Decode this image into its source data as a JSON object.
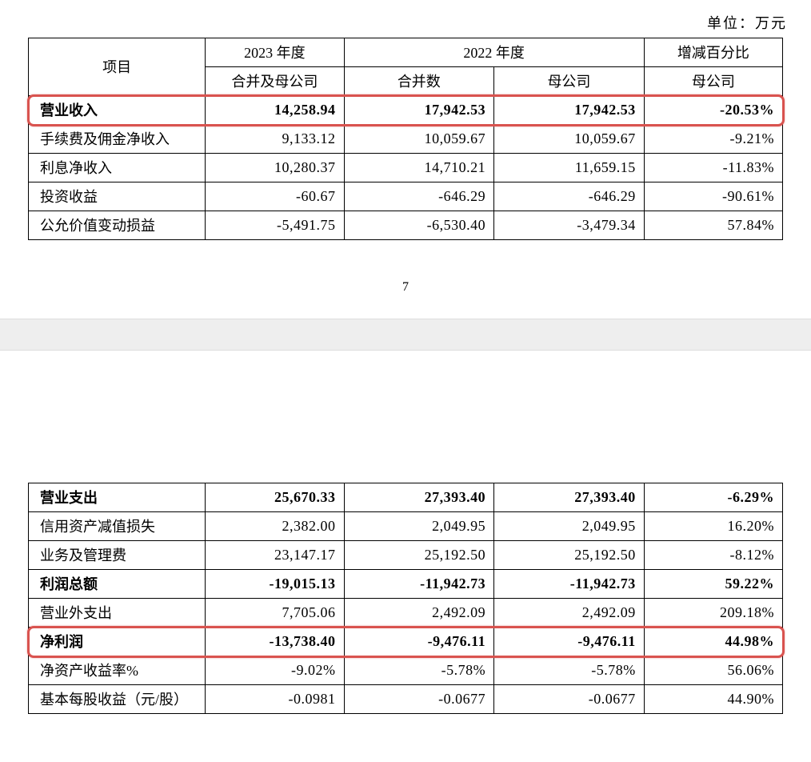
{
  "unit_label": "单位：万元",
  "page_number": "7",
  "table1": {
    "header": {
      "col_item": "项目",
      "col_2023": "2023 年度",
      "col_2022": "2022 年度",
      "col_pct": "增减百分比",
      "sub_merged_parent": "合并及母公司",
      "sub_consolidated": "合并数",
      "sub_parent": "母公司",
      "sub_parent_pct": "母公司"
    },
    "rows": [
      {
        "label": "营业收入",
        "bold": true,
        "highlight": true,
        "c1": "14,258.94",
        "c2": "17,942.53",
        "c3": "17,942.53",
        "c4": "-20.53%"
      },
      {
        "label": "手续费及佣金净收入",
        "bold": false,
        "highlight": false,
        "c1": "9,133.12",
        "c2": "10,059.67",
        "c3": "10,059.67",
        "c4": "-9.21%"
      },
      {
        "label": "利息净收入",
        "bold": false,
        "highlight": false,
        "c1": "10,280.37",
        "c2": "14,710.21",
        "c3": "11,659.15",
        "c4": "-11.83%"
      },
      {
        "label": "投资收益",
        "bold": false,
        "highlight": false,
        "c1": "-60.67",
        "c2": "-646.29",
        "c3": "-646.29",
        "c4": "-90.61%"
      },
      {
        "label": "公允价值变动损益",
        "bold": false,
        "highlight": false,
        "c1": "-5,491.75",
        "c2": "-6,530.40",
        "c3": "-3,479.34",
        "c4": "57.84%"
      }
    ]
  },
  "table2": {
    "rows": [
      {
        "label": "营业支出",
        "bold": true,
        "highlight": false,
        "c1": "25,670.33",
        "c2": "27,393.40",
        "c3": "27,393.40",
        "c4": "-6.29%"
      },
      {
        "label": "信用资产减值损失",
        "bold": false,
        "highlight": false,
        "c1": "2,382.00",
        "c2": "2,049.95",
        "c3": "2,049.95",
        "c4": "16.20%"
      },
      {
        "label": "业务及管理费",
        "bold": false,
        "highlight": false,
        "c1": "23,147.17",
        "c2": "25,192.50",
        "c3": "25,192.50",
        "c4": "-8.12%"
      },
      {
        "label": "利润总额",
        "bold": true,
        "highlight": false,
        "c1": "-19,015.13",
        "c2": "-11,942.73",
        "c3": "-11,942.73",
        "c4": "59.22%"
      },
      {
        "label": "营业外支出",
        "bold": false,
        "highlight": false,
        "c1": "7,705.06",
        "c2": "2,492.09",
        "c3": "2,492.09",
        "c4": "209.18%"
      },
      {
        "label": "净利润",
        "bold": true,
        "highlight": true,
        "c1": "-13,738.40",
        "c2": "-9,476.11",
        "c3": "-9,476.11",
        "c4": "44.98%"
      },
      {
        "label": "净资产收益率%",
        "bold": false,
        "highlight": false,
        "c1": "-9.02%",
        "c2": "-5.78%",
        "c3": "-5.78%",
        "c4": "56.06%"
      },
      {
        "label": "基本每股收益（元/股）",
        "bold": false,
        "highlight": false,
        "c1": "-0.0981",
        "c2": "-0.0677",
        "c3": "-0.0677",
        "c4": "44.90%"
      }
    ]
  },
  "styling": {
    "highlight_border_color": "#d9534f",
    "highlight_border_width": 3,
    "highlight_border_radius": 8,
    "table_border_color": "#000000",
    "table_border_width": 1.5,
    "background_color": "#ffffff",
    "gap_background_color": "#eeeeee",
    "font_family": "SimSun",
    "base_font_size": 18,
    "text_color": "#000000",
    "column_widths_pct": [
      23,
      18,
      19.5,
      19.5,
      18
    ]
  }
}
